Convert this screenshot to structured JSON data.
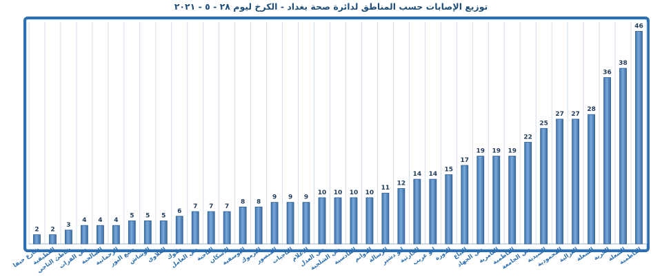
{
  "chart_data": {
    "type": "bar",
    "title": "توزيع الإصابات حسب المناطق لدائرة صحة بغداد - الكرخ ليوم ٢٨ - ٥ - ٢٠٢١",
    "xlabel": "",
    "ylabel": "",
    "ylim": [
      0,
      48
    ],
    "grid": "vertical",
    "legend": "none",
    "bar_color": "#5b8fc9",
    "bar_edge_color": "#2f5f93",
    "categories": [
      "شارع حيفا",
      "العطيفية",
      "شاطئ التاجي",
      "حي الفرات",
      "الصالحية",
      "الرحمانية",
      "سبع البور",
      "الوشاش",
      "العلاوي",
      "جكوك",
      "حي العامل",
      "التاجية",
      "الاسكان",
      "اليوسفية",
      "اليرموك",
      "المنصور",
      "التاجيات",
      "الاعلام",
      "حي العدل",
      "حي الشلجية",
      "القادسية",
      "الدوانم",
      "الرسالة",
      "ابو دشير",
      "الحارثية",
      "ابو غريب",
      "الدورة",
      "البياع",
      "حي الجهاد",
      "العامرية",
      "الكاظمية",
      "حي الجامعة",
      "السيدية",
      "المحمودية",
      "الغزالية",
      "الشعلة",
      "الحرية",
      "الشعلة",
      "الكاظمية"
    ],
    "values": [
      2,
      2,
      3,
      4,
      4,
      4,
      5,
      5,
      5,
      6,
      7,
      7,
      7,
      8,
      8,
      9,
      9,
      9,
      10,
      10,
      10,
      10,
      11,
      12,
      14,
      14,
      15,
      17,
      19,
      19,
      19,
      22,
      25,
      27,
      27,
      28,
      36,
      38,
      46
    ]
  }
}
